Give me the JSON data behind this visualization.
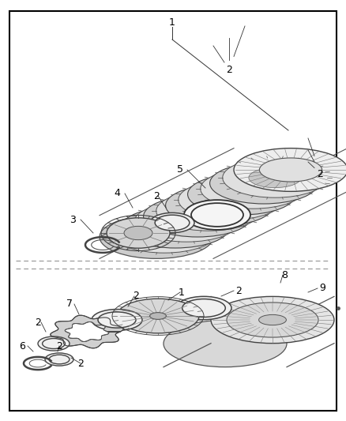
{
  "bg": "#ffffff",
  "fg": "#000000",
  "gray1": "#cccccc",
  "gray2": "#aaaaaa",
  "gray3": "#888888",
  "gray4": "#666666",
  "gray5": "#444444",
  "figw": 4.38,
  "figh": 5.33,
  "dpi": 100
}
